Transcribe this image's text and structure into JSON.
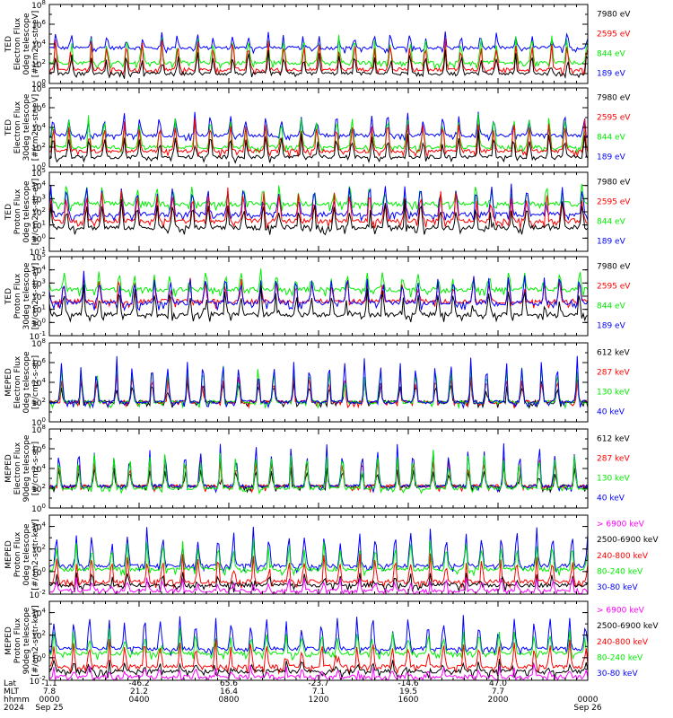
{
  "colors": {
    "black": "#000000",
    "blue": "#0000ff",
    "red": "#ff0000",
    "green": "#00ee00",
    "magenta": "#ff00ff"
  },
  "chart_data": [
    {
      "type": "line",
      "ylabel": [
        "TED",
        "Electron Flux",
        "0deg telescope",
        "[#/cm2-s-str-eV]"
      ],
      "y_log": true,
      "ylim_exp": [
        0,
        8
      ],
      "y_ticks": [
        {
          "base": "10",
          "exp": "8"
        },
        {
          "base": "10",
          "exp": "6"
        },
        {
          "base": "10",
          "exp": "4"
        },
        {
          "base": "10",
          "exp": "2"
        },
        {
          "base": "10",
          "exp": "0"
        }
      ],
      "series": [
        {
          "name": "7980 eV",
          "color": "black",
          "base": 1.0,
          "spike": 3.0
        },
        {
          "name": "2595 eV",
          "color": "red",
          "base": 1.4,
          "spike": 4.2
        },
        {
          "name": "844 eV",
          "color": "green",
          "base": 2.1,
          "spike": 4.6
        },
        {
          "name": "189 eV",
          "color": "blue",
          "base": 3.6,
          "spike": 4.9
        }
      ]
    },
    {
      "type": "line",
      "ylabel": [
        "TED",
        "Electron Flux",
        "30deg telescope",
        "[#/cm2-s-str-eV]"
      ],
      "y_log": true,
      "ylim_exp": [
        0,
        8
      ],
      "y_ticks": [
        {
          "base": "10",
          "exp": "8"
        },
        {
          "base": "10",
          "exp": "6"
        },
        {
          "base": "10",
          "exp": "4"
        },
        {
          "base": "10",
          "exp": "2"
        },
        {
          "base": "10",
          "exp": "0"
        }
      ],
      "series": [
        {
          "name": "7980 eV",
          "color": "black",
          "base": 1.0,
          "spike": 3.2
        },
        {
          "name": "2595 eV",
          "color": "red",
          "base": 1.6,
          "spike": 4.5
        },
        {
          "name": "844 eV",
          "color": "green",
          "base": 2.0,
          "spike": 5.0
        },
        {
          "name": "189 eV",
          "color": "blue",
          "base": 3.2,
          "spike": 5.2
        }
      ]
    },
    {
      "type": "line",
      "ylabel": [
        "TED",
        "Proton Flux",
        "0deg telescope",
        "[#/cm2-s-str-eV]"
      ],
      "y_log": true,
      "ylim_exp": [
        -1,
        5
      ],
      "y_ticks": [
        {
          "base": "10",
          "exp": "5"
        },
        {
          "base": "10",
          "exp": "4"
        },
        {
          "base": "10",
          "exp": "3"
        },
        {
          "base": "10",
          "exp": "2"
        },
        {
          "base": "10",
          "exp": "1"
        },
        {
          "base": "10",
          "exp": "0"
        },
        {
          "base": "10",
          "exp": "-1"
        }
      ],
      "series": [
        {
          "name": "7980 eV",
          "color": "black",
          "base": 0.8,
          "spike": 2.6
        },
        {
          "name": "2595 eV",
          "color": "red",
          "base": 1.3,
          "spike": 3.4
        },
        {
          "name": "844 eV",
          "color": "green",
          "base": 2.6,
          "spike": 3.8
        },
        {
          "name": "189 eV",
          "color": "blue",
          "base": 1.8,
          "spike": 4.0
        }
      ]
    },
    {
      "type": "line",
      "ylabel": [
        "TED",
        "Proton Flux",
        "30deg telescope",
        "[#/cm2-s-str-eV]"
      ],
      "y_log": true,
      "ylim_exp": [
        -1,
        5
      ],
      "y_ticks": [
        {
          "base": "10",
          "exp": "5"
        },
        {
          "base": "10",
          "exp": "4"
        },
        {
          "base": "10",
          "exp": "3"
        },
        {
          "base": "10",
          "exp": "2"
        },
        {
          "base": "10",
          "exp": "1"
        },
        {
          "base": "10",
          "exp": "0"
        },
        {
          "base": "10",
          "exp": "-1"
        }
      ],
      "series": [
        {
          "name": "7980 eV",
          "color": "black",
          "base": 0.6,
          "spike": 2.4
        },
        {
          "name": "2595 eV",
          "color": "red",
          "base": 1.6,
          "spike": 3.2
        },
        {
          "name": "844 eV",
          "color": "green",
          "base": 2.5,
          "spike": 3.7
        },
        {
          "name": "189 eV",
          "color": "blue",
          "base": 1.5,
          "spike": 3.6
        }
      ]
    },
    {
      "type": "line",
      "ylabel": [
        "MEPED",
        "Electron Flux",
        "0deg telescope",
        "[#/cm2-s-str]"
      ],
      "y_log": true,
      "ylim_exp": [
        0,
        8
      ],
      "y_ticks": [
        {
          "base": "10",
          "exp": "8"
        },
        {
          "base": "10",
          "exp": "6"
        },
        {
          "base": "10",
          "exp": "4"
        },
        {
          "base": "10",
          "exp": "2"
        },
        {
          "base": "10",
          "exp": "0"
        }
      ],
      "series": [
        {
          "name": "612 keV",
          "color": "black",
          "base": 2.0,
          "spike": 4.0
        },
        {
          "name": "287 keV",
          "color": "red",
          "base": 2.0,
          "spike": 4.6
        },
        {
          "name": "130 keV",
          "color": "green",
          "base": 2.0,
          "spike": 5.6
        },
        {
          "name": "40 keV",
          "color": "blue",
          "base": 2.0,
          "spike": 6.4
        }
      ]
    },
    {
      "type": "line",
      "ylabel": [
        "MEPED",
        "Electron Flux",
        "90deg telescope",
        "[#/cm2-s-str]"
      ],
      "y_log": true,
      "ylim_exp": [
        0,
        8
      ],
      "y_ticks": [
        {
          "base": "10",
          "exp": "8"
        },
        {
          "base": "10",
          "exp": "6"
        },
        {
          "base": "10",
          "exp": "4"
        },
        {
          "base": "10",
          "exp": "2"
        },
        {
          "base": "10",
          "exp": "0"
        }
      ],
      "series": [
        {
          "name": "612 keV",
          "color": "black",
          "base": 2.2,
          "spike": 4.0
        },
        {
          "name": "287 keV",
          "color": "red",
          "base": 2.2,
          "spike": 4.9
        },
        {
          "name": "130 keV",
          "color": "green",
          "base": 2.0,
          "spike": 5.7
        },
        {
          "name": "40 keV",
          "color": "blue",
          "base": 2.2,
          "spike": 6.2
        }
      ]
    },
    {
      "type": "line",
      "ylabel": [
        "MEPED",
        "Proton Flux",
        "0deg telescope",
        "[#/cm2-s-str-keV]"
      ],
      "y_log": true,
      "ylim_exp": [
        -2,
        5
      ],
      "y_ticks": [
        {
          "base": "10",
          "exp": "4"
        },
        {
          "base": "10",
          "exp": "2"
        },
        {
          "base": "10",
          "exp": "0"
        },
        {
          "base": "10",
          "exp": "-2"
        }
      ],
      "series": [
        {
          "name": "> 6900 keV",
          "color": "magenta",
          "base": -1.7,
          "spike": -0.8
        },
        {
          "name": "2500-6900 keV",
          "color": "black",
          "base": -1.2,
          "spike": -0.5
        },
        {
          "name": "240-800 keV",
          "color": "red",
          "base": -0.9,
          "spike": 1.2
        },
        {
          "name": "80-240 keV",
          "color": "green",
          "base": 0.2,
          "spike": 2.4
        },
        {
          "name": "30-80 keV",
          "color": "blue",
          "base": 0.5,
          "spike": 3.6
        }
      ]
    },
    {
      "type": "line",
      "ylabel": [
        "MEPED",
        "Proton Flux",
        "90deg telescope",
        "[#/cm2-s-str-keV]"
      ],
      "y_log": true,
      "ylim_exp": [
        -2,
        5
      ],
      "y_ticks": [
        {
          "base": "10",
          "exp": "4"
        },
        {
          "base": "10",
          "exp": "2"
        },
        {
          "base": "10",
          "exp": "0"
        },
        {
          "base": "10",
          "exp": "-2"
        }
      ],
      "series": [
        {
          "name": "> 6900 keV",
          "color": "magenta",
          "base": -1.7,
          "spike": -0.9
        },
        {
          "name": "2500-6900 keV",
          "color": "black",
          "base": -1.2,
          "spike": -0.5
        },
        {
          "name": "240-800 keV",
          "color": "red",
          "base": -0.8,
          "spike": 1.4
        },
        {
          "name": "80-240 keV",
          "color": "green",
          "base": 0.4,
          "spike": 2.2
        },
        {
          "name": "30-80 keV",
          "color": "blue",
          "base": 0.8,
          "spike": 3.6
        }
      ]
    }
  ],
  "x_axis": {
    "row_labels": [
      "Lat",
      "MLT",
      "hhmm",
      "2024"
    ],
    "ticks": [
      {
        "lat": "-1.1",
        "mlt": "7.8",
        "hhmm": "0000",
        "date": "Sep 25"
      },
      {
        "lat": "-46.2",
        "mlt": "21.2",
        "hhmm": "0400",
        "date": ""
      },
      {
        "lat": "65.6",
        "mlt": "16.4",
        "hhmm": "0800",
        "date": ""
      },
      {
        "lat": "-23.7",
        "mlt": "7.1",
        "hhmm": "1200",
        "date": ""
      },
      {
        "lat": "-14.6",
        "mlt": "19.5",
        "hhmm": "1600",
        "date": ""
      },
      {
        "lat": "47.0",
        "mlt": "7.7",
        "hhmm": "2000",
        "date": ""
      },
      {
        "lat": "",
        "mlt": "",
        "hhmm": "0000",
        "date": "Sep 26"
      }
    ]
  }
}
